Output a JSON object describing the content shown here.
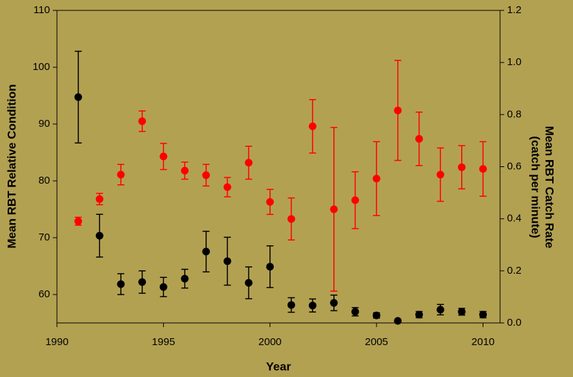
{
  "chart_data": {
    "type": "errorbar-scatter",
    "xlabel": "Year",
    "ylabel": "Mean RBT Relative Condition",
    "y2label": [
      "Mean RBT Catch Rate",
      "(catch per minute)"
    ],
    "x": [
      1991,
      1992,
      1993,
      1994,
      1995,
      1996,
      1997,
      1998,
      1999,
      2000,
      2001,
      2002,
      2003,
      2004,
      2005,
      2006,
      2007,
      2008,
      2009,
      2010
    ],
    "xlim": [
      1990,
      2010.8
    ],
    "xticks": [
      1990,
      1995,
      2000,
      2005,
      2010
    ],
    "ylim": [
      55,
      110
    ],
    "yticks": [
      60,
      70,
      80,
      90,
      100,
      110
    ],
    "y2lim": [
      0,
      1.2
    ],
    "y2ticks": [
      {
        "value": 0,
        "label": "0.0"
      },
      0.2,
      0.4,
      0.6,
      0.8,
      {
        "value": 1,
        "label": "1.0"
      },
      1.2
    ],
    "series": [
      {
        "color": "#ff0000",
        "axis": "y",
        "values": [
          72.9,
          76.8,
          81.1,
          90.5,
          84.3,
          81.8,
          81.0,
          78.9,
          83.2,
          76.3,
          73.3,
          89.6,
          75.0,
          76.6,
          80.4,
          92.4,
          87.4,
          81.1,
          82.4,
          82.1
        ],
        "errors": [
          0.7,
          1.0,
          1.8,
          1.8,
          2.3,
          1.5,
          1.9,
          1.7,
          2.9,
          2.2,
          3.7,
          4.7,
          14.4,
          5.0,
          6.5,
          8.8,
          4.7,
          4.7,
          3.8,
          4.8
        ]
      },
      {
        "color": "#000000",
        "axis": "y2",
        "values": [
          0.867,
          0.335,
          0.149,
          0.157,
          0.138,
          0.17,
          0.274,
          0.237,
          0.154,
          0.216,
          0.069,
          0.067,
          0.077,
          0.043,
          0.029,
          0.008,
          0.032,
          0.051,
          0.043,
          0.032
        ],
        "errors": [
          0.176,
          0.082,
          0.04,
          0.043,
          0.037,
          0.036,
          0.078,
          0.092,
          0.061,
          0.08,
          0.028,
          0.025,
          0.03,
          0.016,
          0.01,
          0.003,
          0.012,
          0.02,
          0.013,
          0.012
        ]
      }
    ]
  }
}
